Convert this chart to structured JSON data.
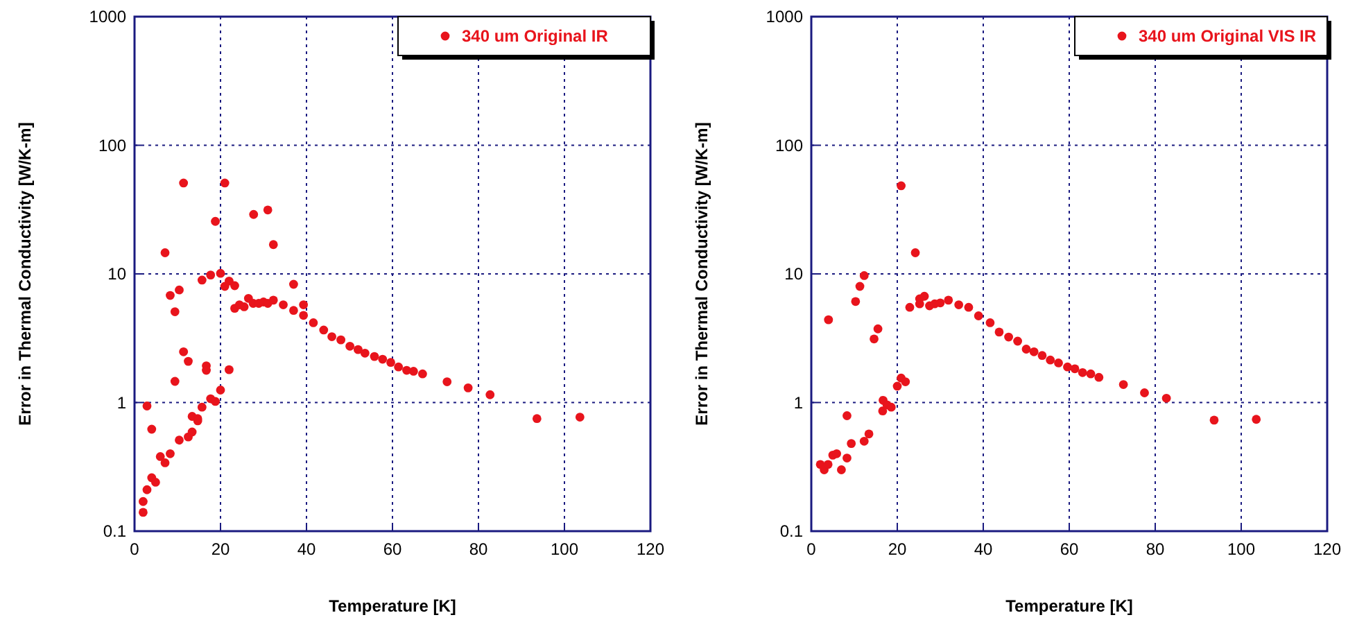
{
  "chart_data": [
    {
      "type": "scatter",
      "xlabel": "Temperature [K]",
      "ylabel": "Error in Thermal Conductivity [W/K-m]",
      "log": "y",
      "grid": true,
      "legend": "top right",
      "marker": "circle",
      "xlim": [
        0,
        120
      ],
      "xticks": [
        0,
        20,
        40,
        60,
        80,
        100,
        120
      ],
      "ylim": [
        0.1,
        1000
      ],
      "yticks": [
        0.1,
        1,
        10,
        100,
        1000
      ],
      "series": [
        {
          "name": "340 um Original IR",
          "color": "#e8141c",
          "x": [
            2.0,
            2.0,
            2.9,
            4.0,
            4.9,
            2.9,
            4.0,
            6.0,
            7.1,
            8.3,
            10.4,
            12.5,
            13.4,
            13.4,
            14.7,
            14.7,
            15.7,
            17.7,
            18.8,
            20.0,
            9.4,
            11.4,
            12.5,
            16.7,
            16.7,
            22.0,
            9.4,
            8.3,
            10.4,
            7.1,
            11.4,
            21.0,
            18.8,
            15.7,
            17.7,
            20.0,
            21.0,
            22.0,
            23.3,
            27.7,
            31.0,
            32.3,
            23.3,
            24.4,
            25.5,
            26.5,
            27.6,
            28.9,
            30.0,
            31.0,
            32.3,
            34.6,
            37.0,
            37.0,
            39.3,
            39.3,
            41.6,
            44.0,
            45.9,
            48.0,
            50.1,
            52.0,
            53.6,
            55.8,
            57.7,
            59.6,
            61.4,
            63.3,
            64.9,
            67.0,
            72.7,
            77.6,
            82.7,
            93.6,
            103.6
          ],
          "values": [
            0.14,
            0.17,
            0.21,
            0.26,
            0.24,
            0.94,
            0.62,
            0.38,
            0.34,
            0.4,
            0.51,
            0.54,
            0.59,
            0.78,
            0.75,
            0.72,
            0.92,
            1.07,
            1.02,
            1.25,
            1.46,
            2.48,
            2.09,
            1.93,
            1.78,
            1.8,
            5.08,
            6.8,
            7.5,
            14.6,
            50.9,
            50.9,
            25.6,
            8.95,
            9.8,
            10.1,
            8.0,
            8.8,
            8.1,
            29,
            31.4,
            16.9,
            5.4,
            5.75,
            5.55,
            6.45,
            5.9,
            5.9,
            6.05,
            5.9,
            6.25,
            5.75,
            8.3,
            5.2,
            5.75,
            4.76,
            4.17,
            3.66,
            3.25,
            3.07,
            2.74,
            2.58,
            2.42,
            2.28,
            2.17,
            2.05,
            1.89,
            1.78,
            1.75,
            1.67,
            1.45,
            1.3,
            1.15,
            0.75,
            0.77
          ]
        }
      ]
    },
    {
      "type": "scatter",
      "xlabel": "Temperature [K]",
      "ylabel": "Error in Thermal Conductivity [W/K-m]",
      "log": "y",
      "grid": true,
      "legend": "top right",
      "marker": "circle",
      "xlim": [
        0,
        120
      ],
      "xticks": [
        0,
        20,
        40,
        60,
        80,
        100,
        120
      ],
      "ylim": [
        0.1,
        1000
      ],
      "yticks": [
        0.1,
        1,
        10,
        100,
        1000
      ],
      "series": [
        {
          "name": "340 um Original VIS IR",
          "color": "#e8141c",
          "x": [
            2.1,
            3.0,
            3.9,
            5.0,
            5.9,
            7.0,
            8.3,
            9.3,
            8.3,
            12.3,
            13.4,
            16.6,
            16.7,
            17.6,
            18.6,
            20.0,
            20.9,
            21.9,
            4.0,
            14.6,
            15.5,
            10.3,
            11.3,
            12.3,
            20.9,
            24.2,
            22.9,
            25.2,
            25.2,
            26.3,
            27.5,
            28.7,
            30.0,
            31.9,
            34.3,
            36.6,
            38.9,
            41.6,
            43.7,
            45.9,
            48.0,
            50.0,
            51.8,
            53.7,
            55.6,
            57.5,
            59.6,
            61.3,
            63.1,
            65.0,
            66.9,
            72.6,
            77.5,
            82.6,
            93.7,
            103.5
          ],
          "values": [
            0.33,
            0.3,
            0.33,
            0.39,
            0.4,
            0.3,
            0.37,
            0.48,
            0.79,
            0.5,
            0.57,
            0.86,
            1.04,
            0.96,
            0.92,
            1.34,
            1.55,
            1.45,
            4.4,
            3.12,
            3.74,
            6.1,
            8.0,
            9.7,
            48.4,
            14.6,
            5.5,
            5.85,
            6.4,
            6.7,
            5.65,
            5.85,
            5.95,
            6.25,
            5.75,
            5.5,
            4.72,
            4.17,
            3.53,
            3.23,
            3.0,
            2.6,
            2.48,
            2.32,
            2.14,
            2.03,
            1.89,
            1.83,
            1.71,
            1.67,
            1.57,
            1.38,
            1.19,
            1.08,
            0.73,
            0.74
          ]
        }
      ]
    }
  ]
}
